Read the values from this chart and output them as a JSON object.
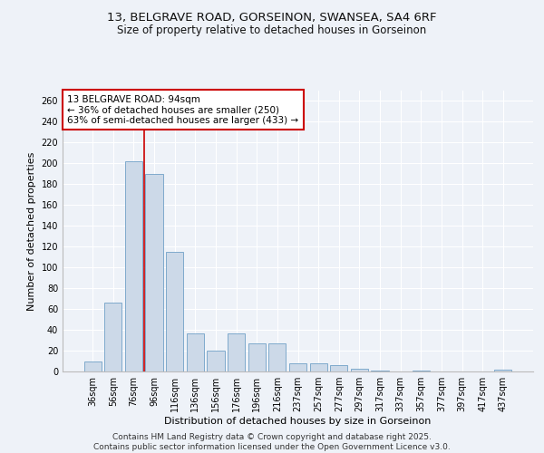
{
  "title_line1": "13, BELGRAVE ROAD, GORSEINON, SWANSEA, SA4 6RF",
  "title_line2": "Size of property relative to detached houses in Gorseinon",
  "xlabel": "Distribution of detached houses by size in Gorseinon",
  "ylabel": "Number of detached properties",
  "categories": [
    "36sqm",
    "56sqm",
    "76sqm",
    "96sqm",
    "116sqm",
    "136sqm",
    "156sqm",
    "176sqm",
    "196sqm",
    "216sqm",
    "237sqm",
    "257sqm",
    "277sqm",
    "297sqm",
    "317sqm",
    "337sqm",
    "357sqm",
    "377sqm",
    "397sqm",
    "417sqm",
    "437sqm"
  ],
  "values": [
    10,
    66,
    202,
    190,
    115,
    37,
    20,
    37,
    27,
    27,
    8,
    8,
    6,
    3,
    1,
    0,
    1,
    0,
    0,
    0,
    2
  ],
  "bar_color": "#ccd9e8",
  "bar_edge_color": "#7faacc",
  "background_color": "#eef2f8",
  "grid_color": "#ffffff",
  "vline_x": 3.0,
  "vline_color": "#cc0000",
  "annotation_text": "13 BELGRAVE ROAD: 94sqm\n← 36% of detached houses are smaller (250)\n63% of semi-detached houses are larger (433) →",
  "annotation_box_facecolor": "#ffffff",
  "annotation_box_edgecolor": "#cc0000",
  "footer_line1": "Contains HM Land Registry data © Crown copyright and database right 2025.",
  "footer_line2": "Contains public sector information licensed under the Open Government Licence v3.0.",
  "ylim": [
    0,
    270
  ],
  "yticks": [
    0,
    20,
    40,
    60,
    80,
    100,
    120,
    140,
    160,
    180,
    200,
    220,
    240,
    260
  ],
  "title_fontsize": 9.5,
  "subtitle_fontsize": 8.5,
  "axis_label_fontsize": 8,
  "tick_fontsize": 7,
  "annotation_fontsize": 7.5,
  "footer_fontsize": 6.5
}
